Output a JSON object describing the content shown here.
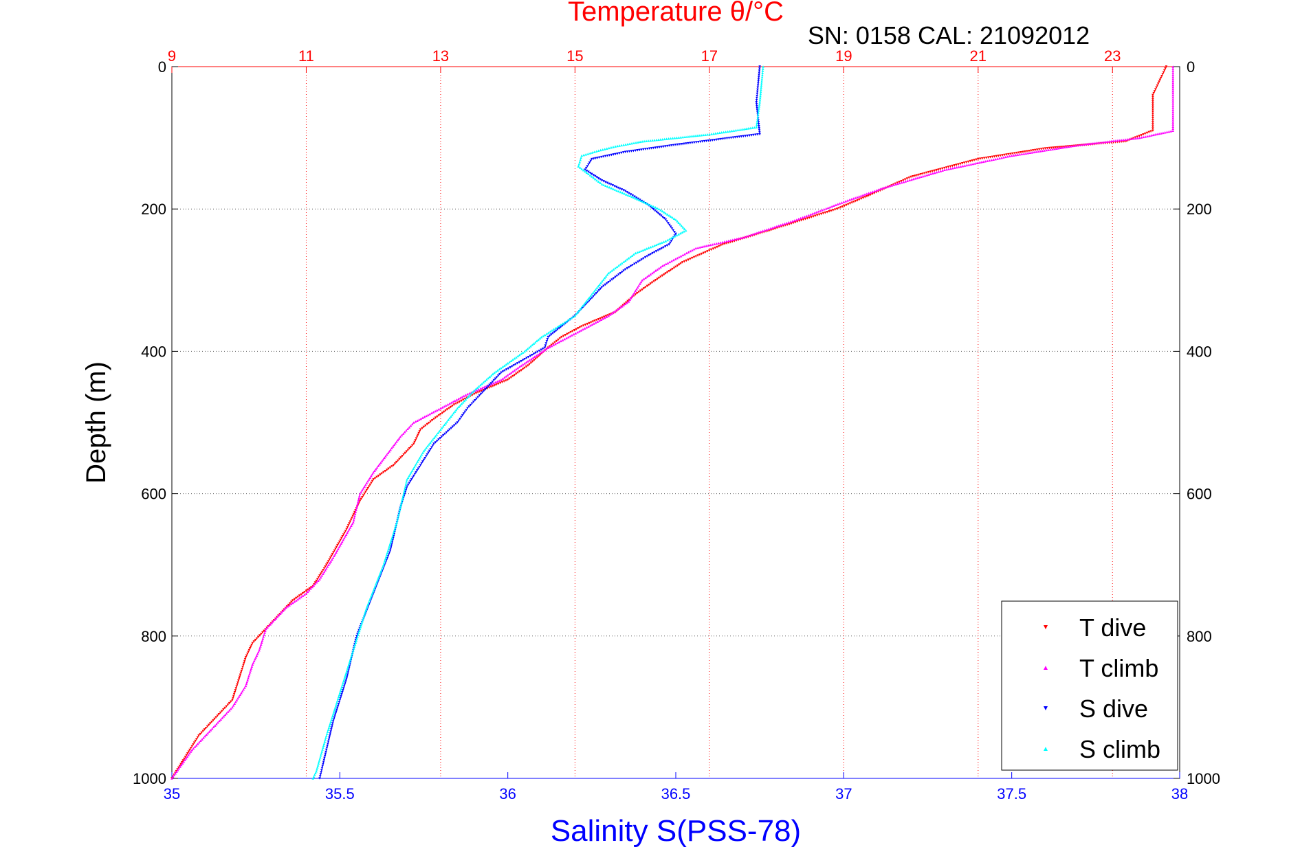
{
  "chart_data": {
    "type": "scatter",
    "subtitle": "SN: 0158  CAL: 21092012",
    "ylabel": "Depth (m)",
    "ylim": [
      0,
      1000
    ],
    "yticks": [
      0,
      200,
      400,
      600,
      800,
      1000
    ],
    "y_reversed": true,
    "x_bottom": {
      "label": "Salinity S(PSS-78)",
      "lim": [
        35,
        38
      ],
      "ticks": [
        "35",
        "35.5",
        "36",
        "36.5",
        "37",
        "37.5",
        "38"
      ],
      "tick_values": [
        35,
        35.5,
        36,
        36.5,
        37,
        37.5,
        38
      ],
      "color": "#0000ff"
    },
    "x_top": {
      "label": "Temperature θ/°C",
      "lim": [
        9,
        24
      ],
      "ticks": [
        "9",
        "11",
        "13",
        "15",
        "17",
        "19",
        "21",
        "23"
      ],
      "tick_values": [
        9,
        11,
        13,
        15,
        17,
        19,
        21,
        23
      ],
      "color": "#ff0000"
    },
    "grid": true,
    "legend_position": "bottom-right",
    "series": [
      {
        "name": "T dive",
        "axis": "temperature",
        "color": "#ff0000",
        "marker": "triangle-down",
        "points": [
          [
            23.8,
            0
          ],
          [
            23.6,
            40
          ],
          [
            23.6,
            90
          ],
          [
            23.2,
            105
          ],
          [
            22,
            115
          ],
          [
            21,
            130
          ],
          [
            20,
            155
          ],
          [
            19.4,
            180
          ],
          [
            18.9,
            200
          ],
          [
            18.4,
            215
          ],
          [
            17.9,
            230
          ],
          [
            17.2,
            250
          ],
          [
            16.6,
            275
          ],
          [
            16.2,
            300
          ],
          [
            15.9,
            320
          ],
          [
            15.6,
            345
          ],
          [
            15.1,
            365
          ],
          [
            14.8,
            380
          ],
          [
            14.6,
            395
          ],
          [
            14.3,
            420
          ],
          [
            14,
            440
          ],
          [
            13.5,
            460
          ],
          [
            13.2,
            475
          ],
          [
            12.9,
            495
          ],
          [
            12.7,
            510
          ],
          [
            12.6,
            530
          ],
          [
            12.3,
            560
          ],
          [
            12,
            580
          ],
          [
            11.8,
            610
          ],
          [
            11.6,
            650
          ],
          [
            11.3,
            700
          ],
          [
            11.1,
            730
          ],
          [
            10.8,
            750
          ],
          [
            10.5,
            780
          ],
          [
            10.2,
            810
          ],
          [
            10.1,
            830
          ],
          [
            10,
            860
          ],
          [
            9.9,
            890
          ],
          [
            9.7,
            910
          ],
          [
            9.4,
            940
          ],
          [
            9.2,
            970
          ],
          [
            9,
            1000
          ]
        ]
      },
      {
        "name": "T climb",
        "axis": "temperature",
        "color": "#ff00ff",
        "marker": "triangle-up",
        "points": [
          [
            23.9,
            0
          ],
          [
            23.9,
            40
          ],
          [
            23.9,
            90
          ],
          [
            23.4,
            100
          ],
          [
            22.5,
            110
          ],
          [
            21.5,
            125
          ],
          [
            20.5,
            145
          ],
          [
            19.6,
            170
          ],
          [
            19,
            190
          ],
          [
            18.3,
            215
          ],
          [
            17.5,
            240
          ],
          [
            16.8,
            255
          ],
          [
            16.3,
            280
          ],
          [
            16,
            300
          ],
          [
            15.8,
            330
          ],
          [
            15.5,
            350
          ],
          [
            15.2,
            365
          ],
          [
            14.9,
            380
          ],
          [
            14.6,
            395
          ],
          [
            14.2,
            420
          ],
          [
            13.9,
            440
          ],
          [
            13.4,
            460
          ],
          [
            13,
            480
          ],
          [
            12.6,
            500
          ],
          [
            12.4,
            520
          ],
          [
            12.2,
            545
          ],
          [
            12,
            570
          ],
          [
            11.8,
            600
          ],
          [
            11.7,
            640
          ],
          [
            11.4,
            690
          ],
          [
            11.2,
            720
          ],
          [
            11,
            740
          ],
          [
            10.7,
            760
          ],
          [
            10.4,
            790
          ],
          [
            10.3,
            820
          ],
          [
            10.2,
            840
          ],
          [
            10.1,
            870
          ],
          [
            9.9,
            900
          ],
          [
            9.6,
            930
          ],
          [
            9.3,
            960
          ],
          [
            9,
            1000
          ]
        ]
      },
      {
        "name": "S dive",
        "axis": "salinity",
        "color": "#0000ff",
        "marker": "triangle-down",
        "points": [
          [
            36.75,
            0
          ],
          [
            36.74,
            50
          ],
          [
            36.75,
            95
          ],
          [
            36.5,
            110
          ],
          [
            36.35,
            120
          ],
          [
            36.25,
            130
          ],
          [
            36.23,
            145
          ],
          [
            36.28,
            160
          ],
          [
            36.35,
            175
          ],
          [
            36.42,
            195
          ],
          [
            36.47,
            215
          ],
          [
            36.5,
            235
          ],
          [
            36.48,
            250
          ],
          [
            36.42,
            265
          ],
          [
            36.35,
            285
          ],
          [
            36.28,
            310
          ],
          [
            36.2,
            350
          ],
          [
            36.12,
            380
          ],
          [
            36.11,
            395
          ],
          [
            35.98,
            430
          ],
          [
            35.92,
            460
          ],
          [
            35.88,
            480
          ],
          [
            35.85,
            500
          ],
          [
            35.78,
            530
          ],
          [
            35.74,
            560
          ],
          [
            35.7,
            590
          ],
          [
            35.68,
            620
          ],
          [
            35.65,
            680
          ],
          [
            35.6,
            740
          ],
          [
            35.55,
            800
          ],
          [
            35.52,
            860
          ],
          [
            35.48,
            920
          ],
          [
            35.45,
            980
          ],
          [
            35.44,
            1000
          ]
        ]
      },
      {
        "name": "S climb",
        "axis": "salinity",
        "color": "#00ffff",
        "marker": "triangle-up",
        "points": [
          [
            36.76,
            0
          ],
          [
            36.75,
            50
          ],
          [
            36.74,
            85
          ],
          [
            36.6,
            95
          ],
          [
            36.4,
            105
          ],
          [
            36.32,
            112
          ],
          [
            36.27,
            118
          ],
          [
            36.22,
            125
          ],
          [
            36.21,
            140
          ],
          [
            36.28,
            165
          ],
          [
            36.38,
            185
          ],
          [
            36.45,
            200
          ],
          [
            36.5,
            215
          ],
          [
            36.53,
            230
          ],
          [
            36.47,
            245
          ],
          [
            36.38,
            262
          ],
          [
            36.3,
            290
          ],
          [
            36.25,
            320
          ],
          [
            36.2,
            350
          ],
          [
            36.1,
            380
          ],
          [
            36.05,
            400
          ],
          [
            35.96,
            430
          ],
          [
            35.9,
            455
          ],
          [
            35.85,
            480
          ],
          [
            35.8,
            510
          ],
          [
            35.75,
            540
          ],
          [
            35.7,
            580
          ],
          [
            35.67,
            640
          ],
          [
            35.63,
            700
          ],
          [
            35.58,
            760
          ],
          [
            35.54,
            820
          ],
          [
            35.5,
            880
          ],
          [
            35.46,
            940
          ],
          [
            35.43,
            990
          ],
          [
            35.42,
            1000
          ]
        ]
      }
    ]
  }
}
